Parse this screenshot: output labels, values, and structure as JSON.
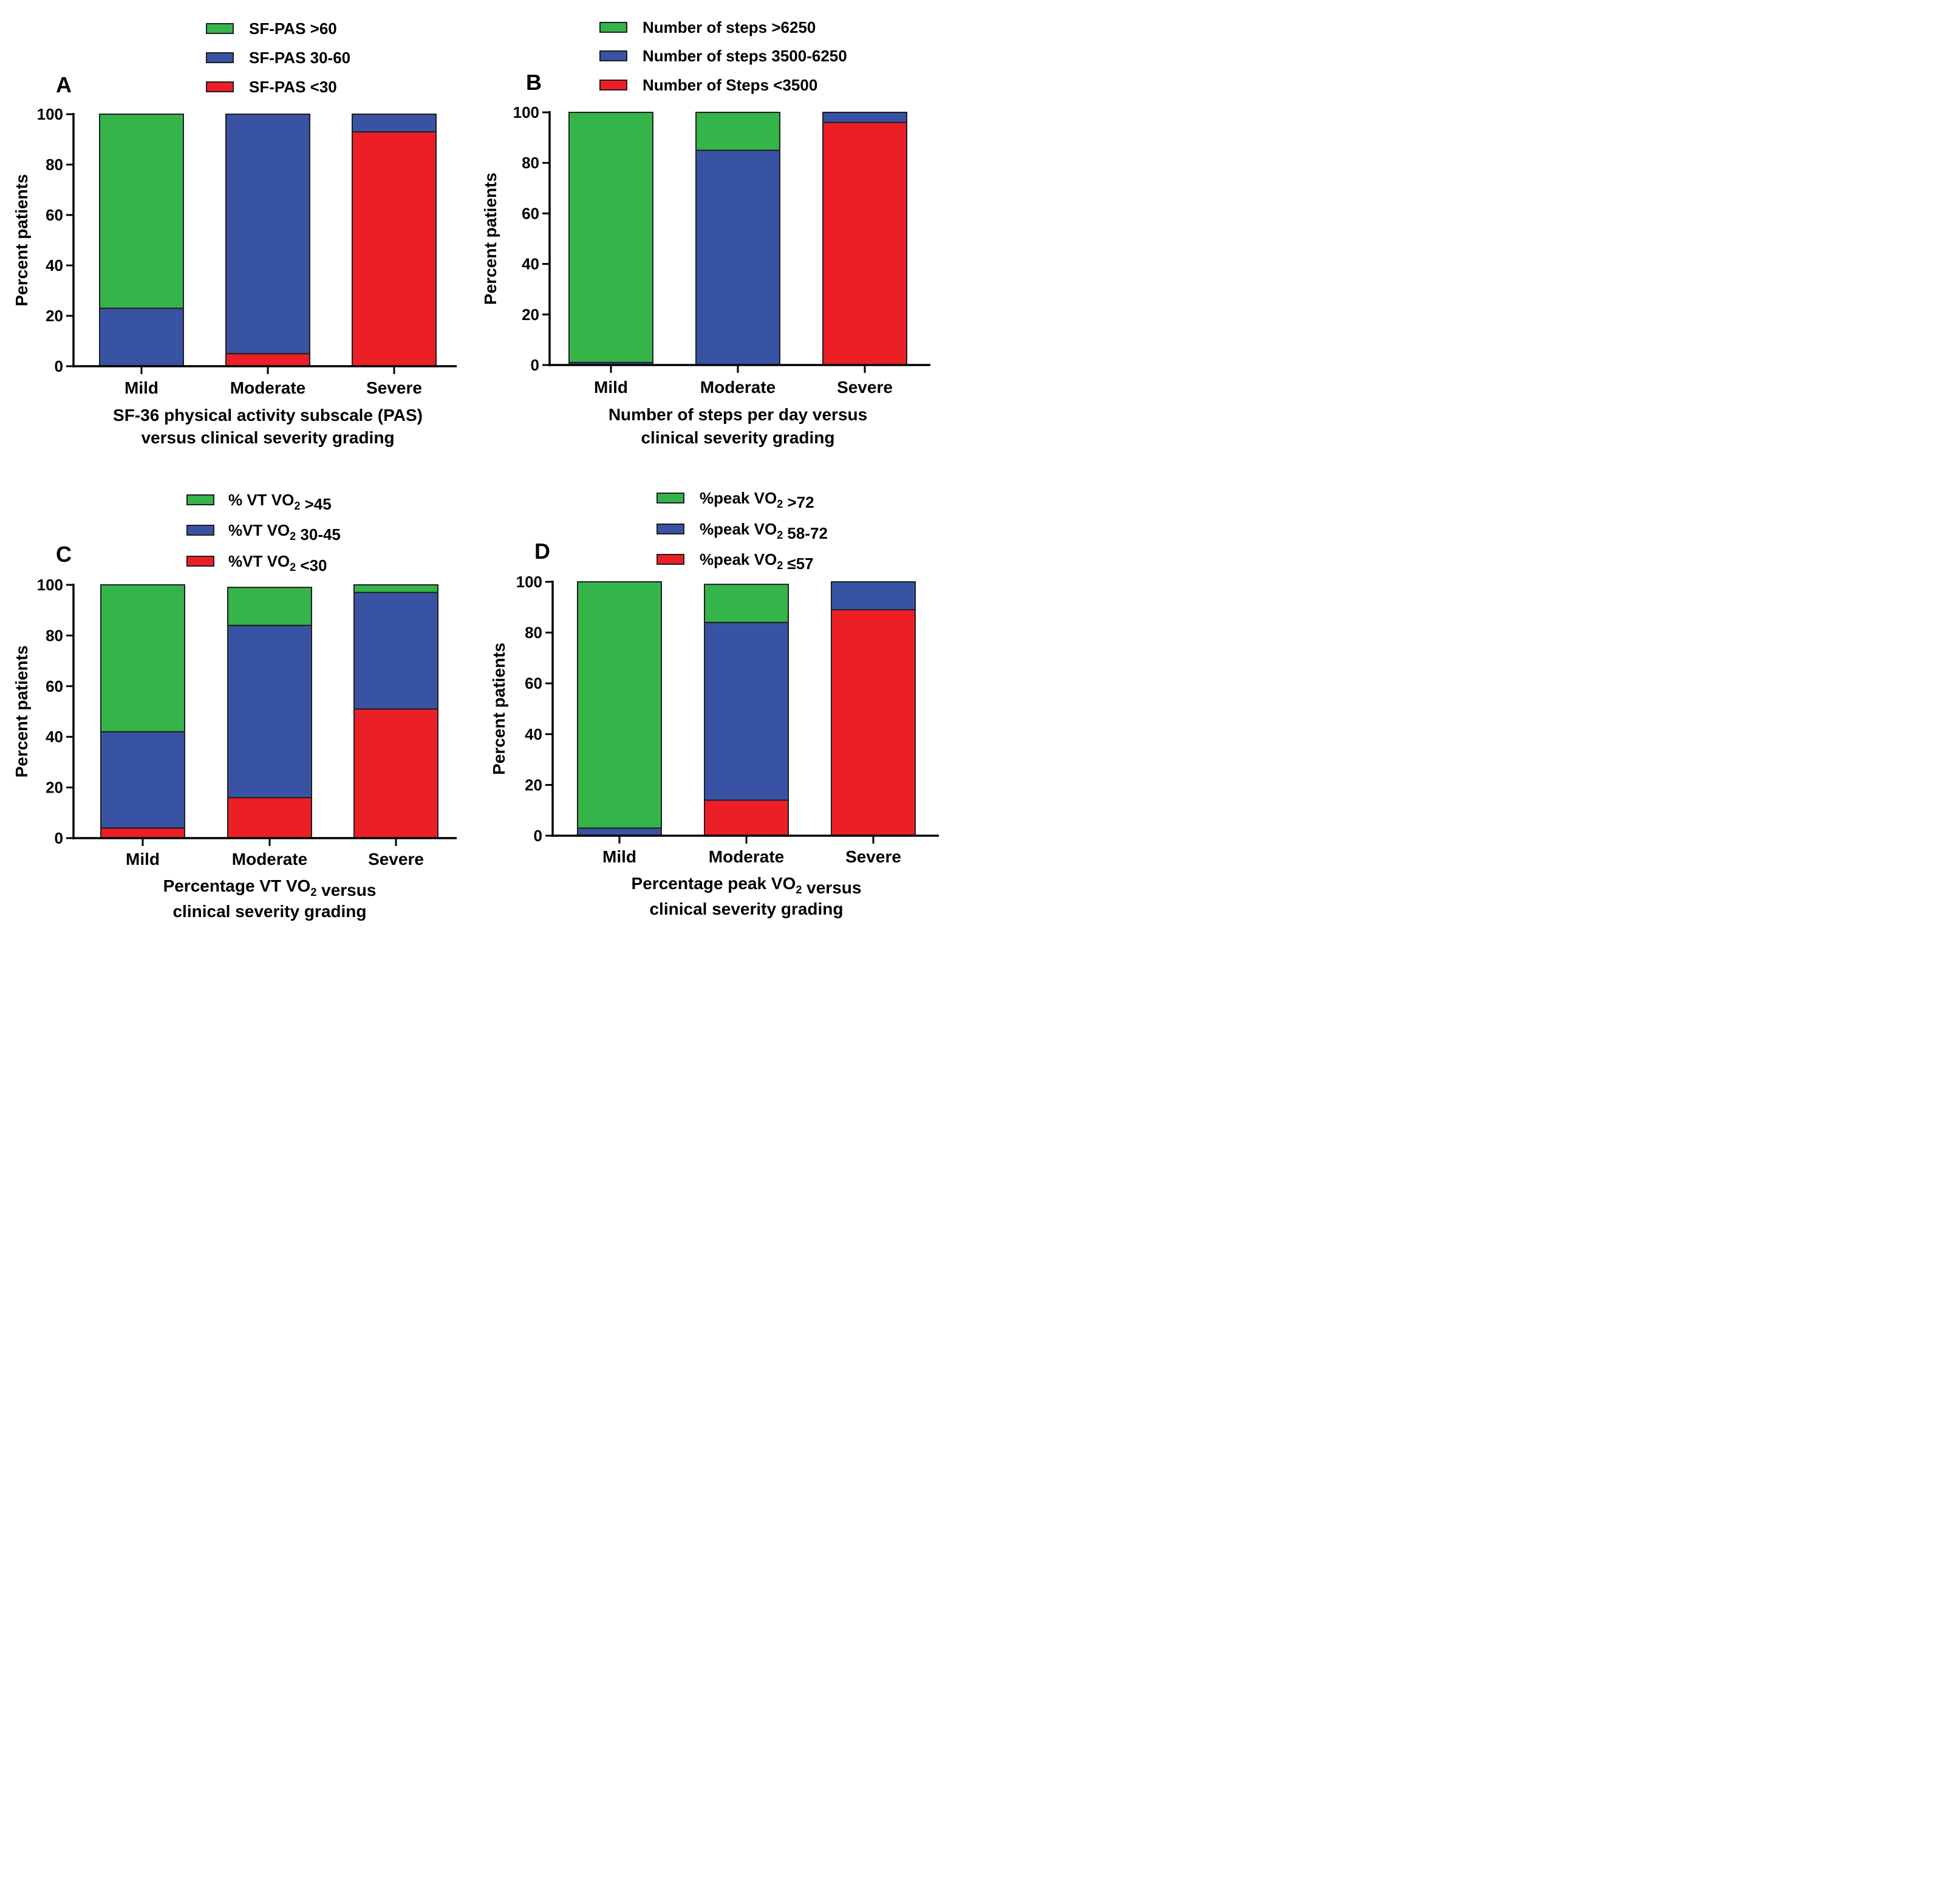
{
  "colors": {
    "high": "#35b44a",
    "mid": "#3953a4",
    "low": "#ec1f27"
  },
  "chart_data": [
    {
      "panel": "A",
      "type": "stacked-bar",
      "categories": [
        "Mild",
        "Moderate",
        "Severe"
      ],
      "ylabel": "Percent patients",
      "ylim": [
        0,
        100
      ],
      "yticks": [
        "0",
        "20",
        "40",
        "60",
        "80",
        "100"
      ],
      "xlabel": [
        "SF-36 physical activity subscale (PAS)",
        "versus clinical severity grading"
      ],
      "legend": [
        {
          "key": "high",
          "text": "SF-PAS >60"
        },
        {
          "key": "mid",
          "text": "SF-PAS 30-60"
        },
        {
          "key": "low",
          "text": "SF-PAS <30"
        }
      ],
      "series": [
        {
          "key": "low",
          "name": "SF-PAS <30",
          "values": [
            0,
            5,
            93
          ]
        },
        {
          "key": "mid",
          "name": "SF-PAS 30-60",
          "values": [
            23,
            95,
            7
          ]
        },
        {
          "key": "high",
          "name": "SF-PAS >60",
          "values": [
            77,
            0,
            0
          ]
        }
      ]
    },
    {
      "panel": "B",
      "type": "stacked-bar",
      "categories": [
        "Mild",
        "Moderate",
        "Severe"
      ],
      "ylabel": "Percent patients",
      "ylim": [
        0,
        100
      ],
      "yticks": [
        "0",
        "20",
        "40",
        "60",
        "80",
        "100"
      ],
      "xlabel": [
        "Number of steps per day versus",
        "clinical severity grading"
      ],
      "legend": [
        {
          "key": "high",
          "text": "Number of steps >6250"
        },
        {
          "key": "mid",
          "text": "Number of steps 3500-6250"
        },
        {
          "key": "low",
          "text": "Number of Steps <3500"
        }
      ],
      "series": [
        {
          "key": "low",
          "name": "Number of Steps <3500",
          "values": [
            0,
            0,
            96
          ]
        },
        {
          "key": "mid",
          "name": "Number of steps 3500-6250",
          "values": [
            1,
            85,
            4
          ]
        },
        {
          "key": "high",
          "name": "Number of steps >6250",
          "values": [
            99,
            15,
            0
          ]
        }
      ]
    },
    {
      "panel": "C",
      "type": "stacked-bar",
      "categories": [
        "Mild",
        "Moderate",
        "Severe"
      ],
      "ylabel": "Percent patients",
      "ylim": [
        0,
        100
      ],
      "yticks": [
        "0",
        "20",
        "40",
        "60",
        "80",
        "100"
      ],
      "xlabel": [
        "Percentage VT VO2 versus",
        "clinical severity grading"
      ],
      "legend": [
        {
          "key": "high",
          "text": "% VT VO2 >45"
        },
        {
          "key": "mid",
          "text": "%VT VO2 30-45"
        },
        {
          "key": "low",
          "text": "%VT VO2 <30"
        }
      ],
      "series": [
        {
          "key": "low",
          "name": "%VT VO2 <30",
          "values": [
            4,
            16,
            51
          ]
        },
        {
          "key": "mid",
          "name": "%VT VO2 30-45",
          "values": [
            38,
            68,
            46
          ]
        },
        {
          "key": "high",
          "name": "% VT VO2 >45",
          "values": [
            58,
            15,
            3
          ]
        }
      ]
    },
    {
      "panel": "D",
      "type": "stacked-bar",
      "categories": [
        "Mild",
        "Moderate",
        "Severe"
      ],
      "ylabel": "Percent patients",
      "ylim": [
        0,
        100
      ],
      "yticks": [
        "0",
        "20",
        "40",
        "60",
        "80",
        "100"
      ],
      "xlabel": [
        "Percentage peak VO2 versus",
        "clinical severity grading"
      ],
      "legend": [
        {
          "key": "high",
          "text": "%peak VO2 >72"
        },
        {
          "key": "mid",
          "text": "%peak VO2 58-72"
        },
        {
          "key": "low",
          "text": "%peak VO2 ≤57"
        }
      ],
      "series": [
        {
          "key": "low",
          "name": "%peak VO2 ≤57",
          "values": [
            0,
            14,
            89
          ]
        },
        {
          "key": "mid",
          "name": "%peak VO2 58-72",
          "values": [
            3,
            70,
            11
          ]
        },
        {
          "key": "high",
          "name": "%peak VO2 >72",
          "values": [
            97,
            15,
            0
          ]
        }
      ]
    }
  ]
}
